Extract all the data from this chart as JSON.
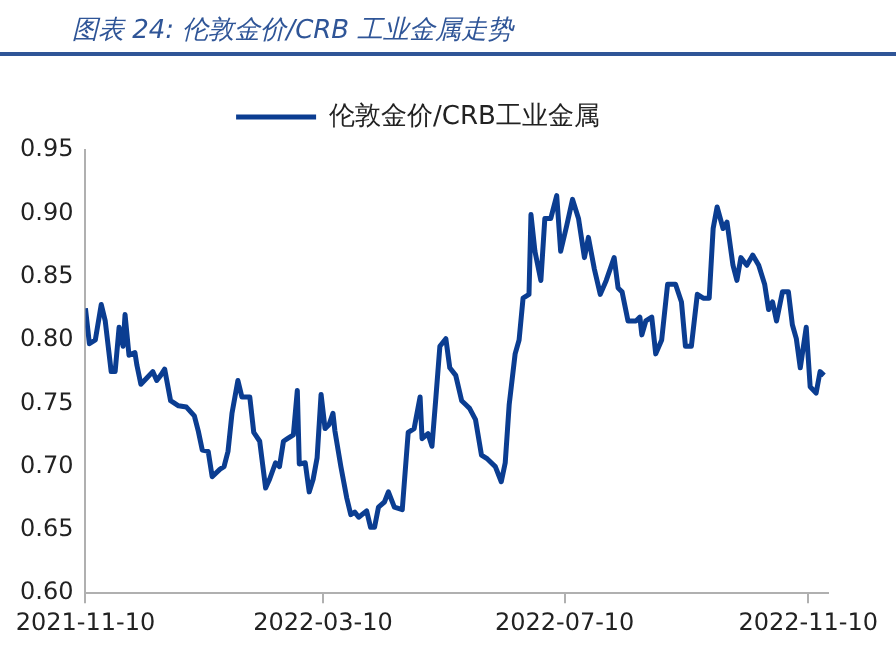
{
  "chart_data": {
    "type": "line",
    "title": "图表 24: 伦敦金价/CRB 工业金属走势",
    "legend": "top",
    "grid": false,
    "marker": "none",
    "line_style": "solid",
    "xlim": [
      "2021-11-10",
      "2022-11-20"
    ],
    "xticks": [
      "2021-11-10",
      "2022-03-10",
      "2022-07-10",
      "2022-11-10"
    ],
    "ylim": [
      0.6,
      0.95
    ],
    "yticks": [
      {
        "value": 0.6,
        "label": "0.60"
      },
      0.65,
      {
        "value": 0.7,
        "label": "0.70"
      },
      0.75,
      {
        "value": 0.8,
        "label": "0.80"
      },
      0.85,
      {
        "value": 0.9,
        "label": "0.90"
      },
      0.95
    ],
    "x": [
      "2021-11-10",
      "2021-11-12",
      "2021-11-15",
      "2021-11-18",
      "2021-11-20",
      "2021-11-23",
      "2021-11-25",
      "2021-11-27",
      "2021-11-29",
      "2021-11-30",
      "2021-12-02",
      "2021-12-05",
      "2021-12-06",
      "2021-12-08",
      "2021-12-11",
      "2021-12-14",
      "2021-12-16",
      "2021-12-18",
      "2021-12-20",
      "2021-12-23",
      "2021-12-27",
      "2021-12-31",
      "2022-01-04",
      "2022-01-06",
      "2022-01-08",
      "2022-01-11",
      "2022-01-13",
      "2022-01-17",
      "2022-01-19",
      "2022-01-21",
      "2022-01-23",
      "2022-01-26",
      "2022-01-28",
      "2022-02-01",
      "2022-02-03",
      "2022-02-06",
      "2022-02-09",
      "2022-02-11",
      "2022-02-14",
      "2022-02-16",
      "2022-02-18",
      "2022-02-20",
      "2022-02-23",
      "2022-02-25",
      "2022-02-26",
      "2022-03-01",
      "2022-03-03",
      "2022-03-05",
      "2022-03-07",
      "2022-03-09",
      "2022-03-11",
      "2022-03-13",
      "2022-03-15",
      "2022-03-16",
      "2022-03-19",
      "2022-03-22",
      "2022-03-24",
      "2022-03-26",
      "2022-03-28",
      "2022-04-01",
      "2022-04-03",
      "2022-04-05",
      "2022-04-07",
      "2022-04-10",
      "2022-04-12",
      "2022-04-15",
      "2022-04-19",
      "2022-04-22",
      "2022-04-25",
      "2022-04-28",
      "2022-04-29",
      "2022-05-02",
      "2022-05-04",
      "2022-05-06",
      "2022-05-08",
      "2022-05-11",
      "2022-05-13",
      "2022-05-16",
      "2022-05-19",
      "2022-05-21",
      "2022-05-23",
      "2022-05-26",
      "2022-05-29",
      "2022-06-01",
      "2022-06-05",
      "2022-06-08",
      "2022-06-10",
      "2022-06-12",
      "2022-06-15",
      "2022-06-17",
      "2022-06-19",
      "2022-06-22",
      "2022-06-23",
      "2022-06-25",
      "2022-06-28",
      "2022-06-30",
      "2022-07-03",
      "2022-07-06",
      "2022-07-08",
      "2022-07-11",
      "2022-07-14",
      "2022-07-17",
      "2022-07-20",
      "2022-07-22",
      "2022-07-25",
      "2022-07-28",
      "2022-07-31",
      "2022-08-04",
      "2022-08-06",
      "2022-08-08",
      "2022-08-11",
      "2022-08-15",
      "2022-08-17",
      "2022-08-18",
      "2022-08-20",
      "2022-08-23",
      "2022-08-25",
      "2022-08-28",
      "2022-08-31",
      "2022-09-04",
      "2022-09-07",
      "2022-09-09",
      "2022-09-12",
      "2022-09-15",
      "2022-09-18",
      "2022-09-21",
      "2022-09-23",
      "2022-09-25",
      "2022-09-28",
      "2022-09-30",
      "2022-10-03",
      "2022-10-05",
      "2022-10-07",
      "2022-10-10",
      "2022-10-13",
      "2022-10-16",
      "2022-10-19",
      "2022-10-21",
      "2022-10-23",
      "2022-10-25",
      "2022-10-28",
      "2022-10-31",
      "2022-11-02",
      "2022-11-04",
      "2022-11-06",
      "2022-11-09",
      "2022-11-11",
      "2022-11-14",
      "2022-11-16",
      "2022-11-18"
    ],
    "series": [
      {
        "name": "伦敦金价/CRB工业金属",
        "color": "#0b3d91",
        "values": [
          0.825,
          0.797,
          0.8,
          0.828,
          0.815,
          0.775,
          0.775,
          0.81,
          0.795,
          0.82,
          0.788,
          0.79,
          0.78,
          0.765,
          0.77,
          0.775,
          0.768,
          0.772,
          0.777,
          0.752,
          0.748,
          0.747,
          0.74,
          0.728,
          0.713,
          0.712,
          0.692,
          0.698,
          0.7,
          0.712,
          0.742,
          0.768,
          0.755,
          0.755,
          0.727,
          0.72,
          0.683,
          0.69,
          0.703,
          0.7,
          0.72,
          0.722,
          0.725,
          0.76,
          0.702,
          0.703,
          0.68,
          0.69,
          0.707,
          0.757,
          0.73,
          0.733,
          0.742,
          0.728,
          0.7,
          0.675,
          0.662,
          0.664,
          0.66,
          0.665,
          0.652,
          0.652,
          0.668,
          0.672,
          0.68,
          0.668,
          0.666,
          0.727,
          0.73,
          0.755,
          0.722,
          0.726,
          0.716,
          0.755,
          0.795,
          0.801,
          0.778,
          0.772,
          0.752,
          0.749,
          0.746,
          0.737,
          0.709,
          0.706,
          0.7,
          0.688,
          0.703,
          0.749,
          0.789,
          0.8,
          0.833,
          0.836,
          0.899,
          0.87,
          0.847,
          0.896,
          0.896,
          0.914,
          0.87,
          0.89,
          0.911,
          0.896,
          0.865,
          0.881,
          0.856,
          0.836,
          0.847,
          0.865,
          0.841,
          0.838,
          0.815,
          0.815,
          0.818,
          0.804,
          0.815,
          0.818,
          0.789,
          0.8,
          0.844,
          0.844,
          0.83,
          0.795,
          0.795,
          0.836,
          0.833,
          0.833,
          0.888,
          0.905,
          0.888,
          0.893,
          0.859,
          0.847,
          0.865,
          0.859,
          0.867,
          0.859,
          0.844,
          0.824,
          0.83,
          0.815,
          0.838,
          0.838,
          0.812,
          0.801,
          0.778,
          0.81,
          0.763,
          0.758,
          0.775,
          0.772
        ]
      }
    ]
  }
}
